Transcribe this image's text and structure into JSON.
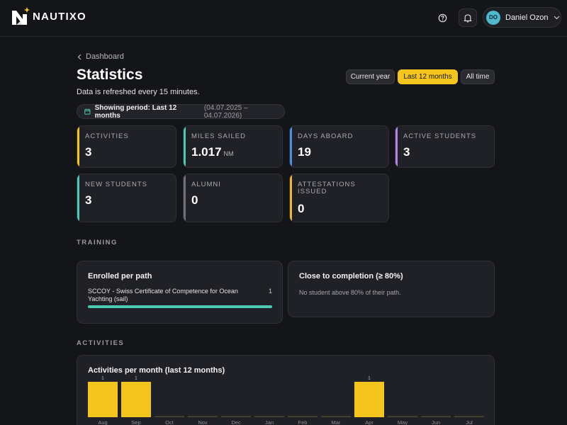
{
  "brand": {
    "name": "NAUTIXO"
  },
  "user": {
    "initials": "DO",
    "name": "Daniel Ozon"
  },
  "breadcrumb": {
    "label": "Dashboard"
  },
  "page": {
    "title": "Statistics",
    "subtitle": "Data is refreshed every 15 minutes."
  },
  "range": {
    "options": [
      "Current year",
      "Last 12 months",
      "All time"
    ],
    "selected": "Last 12 months"
  },
  "period": {
    "label": "Showing period: Last 12 months",
    "dates": "(04.07.2025 – 04.07.2026)"
  },
  "stats": [
    {
      "label": "Activities",
      "value": "3",
      "unit": "",
      "color": "#f4c51d"
    },
    {
      "label": "Miles sailed",
      "value": "1.017",
      "unit": "NM",
      "color": "#4dc8b2"
    },
    {
      "label": "Days aboard",
      "value": "19",
      "unit": "",
      "color": "#4f8fe0"
    },
    {
      "label": "Active students",
      "value": "3",
      "unit": "",
      "color": "#b684e8"
    },
    {
      "label": "New students",
      "value": "3",
      "unit": "",
      "color": "#4dc8b2"
    },
    {
      "label": "Alumni",
      "value": "0",
      "unit": "",
      "color": "#6f7078"
    },
    {
      "label": "Attestations issued",
      "value": "0",
      "unit": "",
      "color": "#f0b23c"
    }
  ],
  "training": {
    "section_label": "TRAINING",
    "enrolled": {
      "title": "Enrolled per path",
      "paths": [
        {
          "name": "SCCOY - Swiss Certificate of Competence for Ocean Yachting (sail)",
          "count": "1",
          "progress": 1.0
        }
      ]
    },
    "completion": {
      "title": "Close to completion (≥ 80%)",
      "note": "No student above 80% of their path."
    }
  },
  "activities": {
    "section_label": "ACTIVITIES",
    "chart_title": "Activities per month (last 12 months)"
  },
  "chart_data": {
    "type": "bar",
    "title": "Activities per month (last 12 months)",
    "categories": [
      "Aug",
      "Sep",
      "Oct",
      "Nov",
      "Dec",
      "Jan",
      "Feb",
      "Mar",
      "Apr",
      "May",
      "Jun",
      "Jul"
    ],
    "values": [
      1,
      1,
      0,
      0,
      0,
      0,
      0,
      0,
      1,
      0,
      0,
      0
    ],
    "ylim": [
      0,
      1
    ],
    "color": "#f4c51d",
    "grid": false
  },
  "colors": {
    "accent": "#f4c51d",
    "background": "#141518",
    "card": "#202126"
  }
}
